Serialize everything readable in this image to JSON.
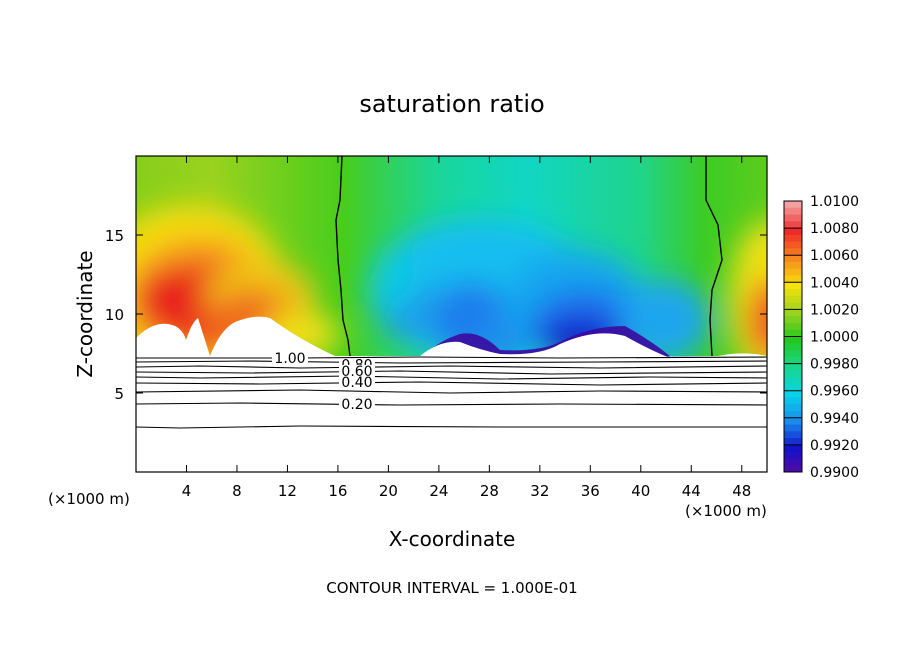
{
  "chart_data": {
    "type": "contour",
    "title": "saturation ratio",
    "xlabel": "X-coordinate",
    "ylabel": "Z-coordinate",
    "x_unit": "(×1000 m)",
    "y_unit": "(×1000 m)",
    "xlim": [
      0,
      50
    ],
    "ylim": [
      0,
      20
    ],
    "xticks": [
      4,
      8,
      12,
      16,
      20,
      24,
      28,
      32,
      36,
      40,
      44,
      48
    ],
    "yticks": [
      5,
      10,
      15
    ],
    "footer": "CONTOUR INTERVAL = 1.000E-01",
    "colorbar": {
      "ticks": [
        "1.0100",
        "1.0080",
        "1.0060",
        "1.0040",
        "1.0020",
        "1.0000",
        "0.9980",
        "0.9960",
        "0.9940",
        "0.9920",
        "0.9900"
      ],
      "colors": [
        "#f4a0a0",
        "#ee2a2a",
        "#f58a1e",
        "#f6e20c",
        "#9ad21e",
        "#22c81e",
        "#18d68c",
        "#0ad2e8",
        "#1a8cec",
        "#1212c8",
        "#5a0aa0"
      ]
    },
    "contour_lines": [
      {
        "label": "1.00",
        "y": 7.2
      },
      {
        "label": "0.80",
        "y": 6.8
      },
      {
        "label": "0.60",
        "y": 6.4
      },
      {
        "label": "0.40",
        "y": 5.7
      },
      {
        "label": "0.20",
        "y": 4.3
      }
    ]
  }
}
